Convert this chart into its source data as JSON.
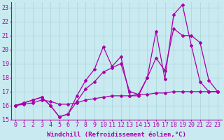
{
  "background_color": "#c8eaf0",
  "grid_color": "#aad4d4",
  "line_color": "#aa00aa",
  "xlim": [
    -0.5,
    23.5
  ],
  "ylim": [
    15,
    23.4
  ],
  "xlabel": "Windchill (Refroidissement éolien,°C)",
  "xlabel_fontsize": 6.5,
  "xtick_labels": [
    "0",
    "1",
    "2",
    "3",
    "4",
    "5",
    "6",
    "7",
    "8",
    "9",
    "10",
    "11",
    "12",
    "13",
    "14",
    "15",
    "16",
    "17",
    "18",
    "19",
    "20",
    "21",
    "22",
    "23"
  ],
  "ytick_labels": [
    "15",
    "16",
    "17",
    "18",
    "19",
    "20",
    "21",
    "22",
    "23"
  ],
  "tick_fontsize": 6,
  "series1_x": [
    0,
    1,
    2,
    3,
    4,
    5,
    6,
    7,
    8,
    9,
    10,
    11,
    12,
    13,
    14,
    15,
    16,
    17,
    18,
    19,
    20,
    21,
    22,
    23
  ],
  "series1_y": [
    16.0,
    16.1,
    16.2,
    16.4,
    16.3,
    16.1,
    16.1,
    16.2,
    16.4,
    16.5,
    16.6,
    16.7,
    16.7,
    16.7,
    16.8,
    16.8,
    16.9,
    16.9,
    17.0,
    17.0,
    17.0,
    17.0,
    17.0,
    17.0
  ],
  "series2_x": [
    0,
    1,
    2,
    3,
    4,
    5,
    6,
    7,
    8,
    9,
    10,
    11,
    12,
    13,
    14,
    15,
    16,
    17,
    18,
    19,
    20,
    21,
    22,
    23
  ],
  "series2_y": [
    16.0,
    16.2,
    16.4,
    16.6,
    16.0,
    15.2,
    15.4,
    16.3,
    17.2,
    17.7,
    18.4,
    18.7,
    19.0,
    17.0,
    16.8,
    18.0,
    19.4,
    18.5,
    21.5,
    21.0,
    21.0,
    20.5,
    17.8,
    17.0
  ],
  "series3_x": [
    0,
    1,
    2,
    3,
    4,
    5,
    6,
    7,
    8,
    9,
    10,
    11,
    12,
    13,
    14,
    15,
    16,
    17,
    18,
    19,
    20,
    21,
    22,
    23
  ],
  "series3_y": [
    16.0,
    16.2,
    16.4,
    16.6,
    16.0,
    15.2,
    15.4,
    16.7,
    17.8,
    18.6,
    20.2,
    18.8,
    19.5,
    16.7,
    16.7,
    18.0,
    21.3,
    17.9,
    22.5,
    23.2,
    20.3,
    17.7,
    17.0,
    17.0
  ]
}
